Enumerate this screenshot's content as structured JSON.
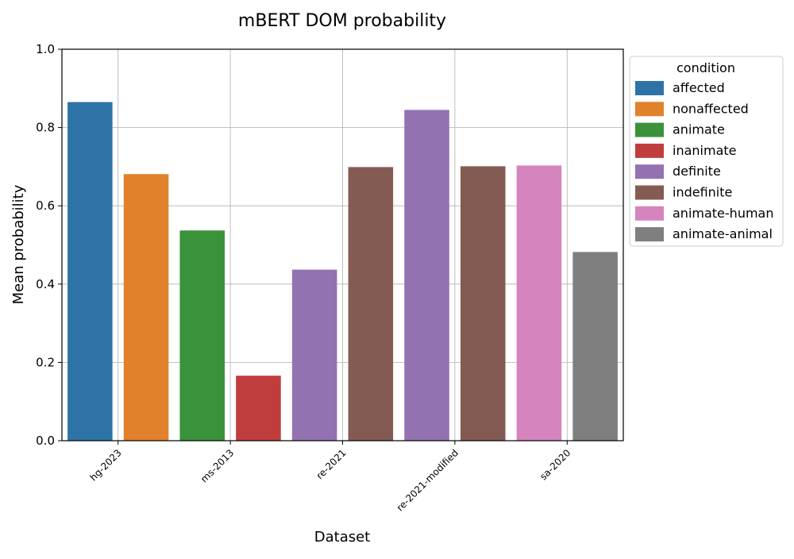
{
  "chart_data": {
    "type": "bar",
    "title": "mBERT DOM probability",
    "xlabel": "Dataset",
    "ylabel": "Mean probability",
    "ylim": [
      0,
      1.0
    ],
    "yticks": [
      "0.0",
      "0.2",
      "0.4",
      "0.6",
      "0.8",
      "1.0"
    ],
    "grid": true,
    "categories": [
      "hg-2023",
      "ms-2013",
      "re-2021",
      "re-2021-modified",
      "sa-2020"
    ],
    "legend": {
      "title": "condition",
      "placement": "outside-right",
      "entries": [
        {
          "name": "affected",
          "color": "#2e73a5"
        },
        {
          "name": "nonaffected",
          "color": "#e1812c"
        },
        {
          "name": "animate",
          "color": "#3a923a"
        },
        {
          "name": "inanimate",
          "color": "#c03d3e"
        },
        {
          "name": "definite",
          "color": "#9372b2"
        },
        {
          "name": "indefinite",
          "color": "#845b53"
        },
        {
          "name": "animate-human",
          "color": "#d684bd"
        },
        {
          "name": "animate-animal",
          "color": "#7f7f7f"
        }
      ]
    },
    "bars": [
      {
        "category": "hg-2023",
        "condition": "affected",
        "value": 0.865
      },
      {
        "category": "hg-2023",
        "condition": "nonaffected",
        "value": 0.681
      },
      {
        "category": "ms-2013",
        "condition": "animate",
        "value": 0.537
      },
      {
        "category": "ms-2013",
        "condition": "inanimate",
        "value": 0.166
      },
      {
        "category": "re-2021",
        "condition": "definite",
        "value": 0.437
      },
      {
        "category": "re-2021",
        "condition": "indefinite",
        "value": 0.699
      },
      {
        "category": "re-2021-modified",
        "condition": "definite",
        "value": 0.845
      },
      {
        "category": "re-2021-modified",
        "condition": "indefinite",
        "value": 0.701
      },
      {
        "category": "sa-2020",
        "condition": "animate-human",
        "value": 0.703
      },
      {
        "category": "sa-2020",
        "condition": "animate-animal",
        "value": 0.482
      }
    ]
  }
}
